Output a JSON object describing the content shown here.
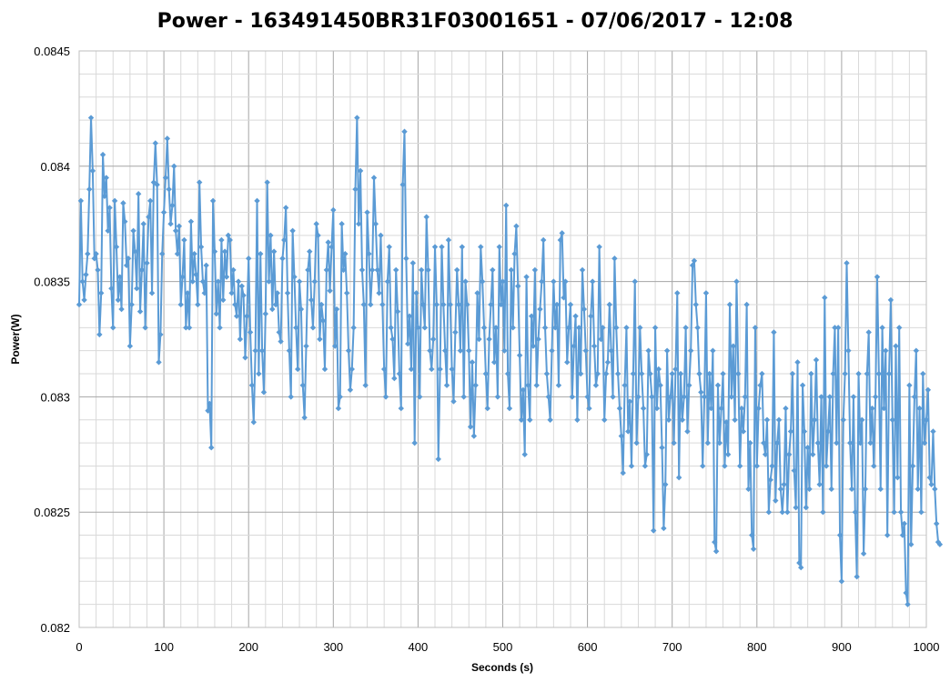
{
  "chart_data": {
    "type": "line",
    "title": "Power - 163491450BR31F03001651 - 07/06/2017 - 12:08",
    "xlabel": "Seconds (s)",
    "ylabel": "Power(W)",
    "xlim": [
      0,
      1000
    ],
    "ylim": [
      0.082,
      0.0845
    ],
    "x_ticks": [
      "0",
      "100",
      "200",
      "300",
      "400",
      "500",
      "600",
      "700",
      "800",
      "900",
      "1000"
    ],
    "y_ticks": [
      "0.082",
      "0.0825",
      "0.083",
      "0.0835",
      "0.084",
      "0.0845"
    ],
    "grid": true,
    "marker": "diamond",
    "color": "#5B9BD5",
    "series": [
      {
        "name": "",
        "x_start": 0,
        "x_step": 2,
        "values": [
          0.0834,
          0.08385,
          0.0835,
          0.08342,
          0.08353,
          0.08362,
          0.0839,
          0.08421,
          0.08398,
          0.0836,
          0.08362,
          0.08355,
          0.08327,
          0.08345,
          0.08405,
          0.08387,
          0.08395,
          0.08372,
          0.08382,
          0.08347,
          0.0833,
          0.08385,
          0.08365,
          0.08342,
          0.08352,
          0.08338,
          0.08384,
          0.08376,
          0.08357,
          0.0836,
          0.08322,
          0.0834,
          0.08372,
          0.08363,
          0.08347,
          0.08388,
          0.08337,
          0.08355,
          0.08375,
          0.0833,
          0.08358,
          0.08378,
          0.08385,
          0.08345,
          0.08393,
          0.0841,
          0.08392,
          0.08315,
          0.08327,
          0.08362,
          0.0838,
          0.08395,
          0.08412,
          0.0839,
          0.08375,
          0.08383,
          0.084,
          0.08372,
          0.08362,
          0.08374,
          0.0834,
          0.08352,
          0.08368,
          0.0833,
          0.08345,
          0.0833,
          0.08376,
          0.0835,
          0.08362,
          0.08353,
          0.0834,
          0.08393,
          0.08365,
          0.0835,
          0.08345,
          0.08357,
          0.08294,
          0.08297,
          0.08278,
          0.08385,
          0.08363,
          0.08336,
          0.0835,
          0.0833,
          0.08368,
          0.08342,
          0.08363,
          0.08352,
          0.0837,
          0.08368,
          0.08345,
          0.08355,
          0.0834,
          0.08335,
          0.0835,
          0.08325,
          0.08348,
          0.08344,
          0.08317,
          0.08335,
          0.0836,
          0.08328,
          0.08305,
          0.08289,
          0.0832,
          0.08385,
          0.0831,
          0.08362,
          0.0832,
          0.08302,
          0.08336,
          0.08393,
          0.0835,
          0.0837,
          0.08338,
          0.08363,
          0.0834,
          0.08345,
          0.08328,
          0.08324,
          0.0836,
          0.08368,
          0.08382,
          0.08345,
          0.0832,
          0.083,
          0.08372,
          0.08352,
          0.0833,
          0.08312,
          0.0835,
          0.08338,
          0.08305,
          0.08291,
          0.08322,
          0.08355,
          0.08363,
          0.08342,
          0.0833,
          0.0835,
          0.08375,
          0.0837,
          0.08325,
          0.0834,
          0.08333,
          0.08312,
          0.08355,
          0.08367,
          0.08346,
          0.08365,
          0.08381,
          0.08322,
          0.08338,
          0.08295,
          0.083,
          0.08375,
          0.08355,
          0.08362,
          0.08345,
          0.0832,
          0.08303,
          0.08312,
          0.0833,
          0.0839,
          0.08421,
          0.08375,
          0.08398,
          0.08355,
          0.0834,
          0.08305,
          0.0838,
          0.08362,
          0.0834,
          0.08355,
          0.08395,
          0.08375,
          0.08355,
          0.08345,
          0.0837,
          0.0834,
          0.08312,
          0.083,
          0.0835,
          0.08365,
          0.0833,
          0.08325,
          0.08308,
          0.08355,
          0.08337,
          0.0831,
          0.08295,
          0.08392,
          0.08415,
          0.0836,
          0.08323,
          0.08335,
          0.08312,
          0.08358,
          0.0828,
          0.08345,
          0.0833,
          0.083,
          0.08355,
          0.0834,
          0.0833,
          0.08378,
          0.08355,
          0.0832,
          0.08312,
          0.08325,
          0.08365,
          0.0834,
          0.08273,
          0.08312,
          0.08365,
          0.0834,
          0.0832,
          0.08305,
          0.08368,
          0.0834,
          0.08312,
          0.08298,
          0.08328,
          0.08355,
          0.0834,
          0.0832,
          0.08365,
          0.083,
          0.0835,
          0.0834,
          0.0832,
          0.08287,
          0.08315,
          0.08283,
          0.08305,
          0.08345,
          0.08325,
          0.08365,
          0.0835,
          0.0833,
          0.0831,
          0.08295,
          0.08325,
          0.0834,
          0.08355,
          0.08315,
          0.0833,
          0.083,
          0.08365,
          0.0834,
          0.0835,
          0.0832,
          0.08383,
          0.0831,
          0.08295,
          0.08355,
          0.0833,
          0.08362,
          0.08374,
          0.08348,
          0.08318,
          0.0829,
          0.08303,
          0.08275,
          0.08352,
          0.08305,
          0.0829,
          0.08335,
          0.08322,
          0.08355,
          0.08305,
          0.08325,
          0.08338,
          0.0835,
          0.08368,
          0.0833,
          0.0831,
          0.083,
          0.0829,
          0.0832,
          0.0835,
          0.0833,
          0.0834,
          0.08305,
          0.08368,
          0.08371,
          0.08343,
          0.0835,
          0.08315,
          0.0833,
          0.0834,
          0.083,
          0.08322,
          0.08335,
          0.0829,
          0.0833,
          0.0831,
          0.08355,
          0.08338,
          0.0832,
          0.083,
          0.08295,
          0.08335,
          0.0835,
          0.08322,
          0.08305,
          0.0831,
          0.08365,
          0.08325,
          0.0833,
          0.0829,
          0.0831,
          0.08315,
          0.0834,
          0.0832,
          0.083,
          0.0836,
          0.0833,
          0.0831,
          0.08295,
          0.08283,
          0.08267,
          0.08305,
          0.0833,
          0.08285,
          0.08298,
          0.0827,
          0.0831,
          0.0835,
          0.0828,
          0.083,
          0.0833,
          0.0831,
          0.08295,
          0.0827,
          0.08275,
          0.0832,
          0.0831,
          0.083,
          0.08242,
          0.0833,
          0.08295,
          0.08312,
          0.08305,
          0.08278,
          0.08243,
          0.08262,
          0.0832,
          0.0829,
          0.083,
          0.0831,
          0.0828,
          0.08312,
          0.08345,
          0.08265,
          0.0831,
          0.0829,
          0.083,
          0.0833,
          0.08285,
          0.08305,
          0.0832,
          0.08357,
          0.08359,
          0.0834,
          0.0833,
          0.0831,
          0.08302,
          0.0827,
          0.083,
          0.08345,
          0.0828,
          0.0831,
          0.08295,
          0.0832,
          0.08237,
          0.08233,
          0.08305,
          0.0828,
          0.08295,
          0.0831,
          0.0827,
          0.08289,
          0.08275,
          0.0834,
          0.083,
          0.08322,
          0.0829,
          0.0835,
          0.0831,
          0.0827,
          0.08295,
          0.08285,
          0.083,
          0.0834,
          0.0826,
          0.0828,
          0.0824,
          0.08234,
          0.0833,
          0.0827,
          0.08295,
          0.08305,
          0.0831,
          0.0828,
          0.08275,
          0.0829,
          0.0825,
          0.08264,
          0.0827,
          0.08328,
          0.08255,
          0.0828,
          0.0829,
          0.0826,
          0.0825,
          0.08262,
          0.08295,
          0.0825,
          0.08275,
          0.08285,
          0.0831,
          0.08268,
          0.08252,
          0.08315,
          0.08228,
          0.08226,
          0.08305,
          0.08285,
          0.08252,
          0.08278,
          0.0826,
          0.0831,
          0.08275,
          0.0829,
          0.08316,
          0.0828,
          0.08262,
          0.083,
          0.0825,
          0.08343,
          0.0827,
          0.08285,
          0.083,
          0.0826,
          0.0831,
          0.0833,
          0.0828,
          0.0833,
          0.0824,
          0.0822,
          0.0829,
          0.0831,
          0.08358,
          0.0832,
          0.0828,
          0.0826,
          0.083,
          0.0825,
          0.08222,
          0.0831,
          0.0828,
          0.0829,
          0.08232,
          0.0826,
          0.0831,
          0.08328,
          0.0828,
          0.08295,
          0.0827,
          0.083,
          0.08352,
          0.0831,
          0.0826,
          0.0833,
          0.08295,
          0.0832,
          0.0824,
          0.0831,
          0.08342,
          0.0829,
          0.0825,
          0.08322,
          0.08265,
          0.0833,
          0.0825,
          0.0824,
          0.08245,
          0.08215,
          0.0821,
          0.08305,
          0.08236,
          0.0827,
          0.083,
          0.0832,
          0.0826,
          0.08295,
          0.0825,
          0.0831,
          0.0828,
          0.0829,
          0.08303,
          0.08265,
          0.08262,
          0.08285,
          0.0826,
          0.08245,
          0.08237,
          0.08236
        ]
      }
    ]
  }
}
